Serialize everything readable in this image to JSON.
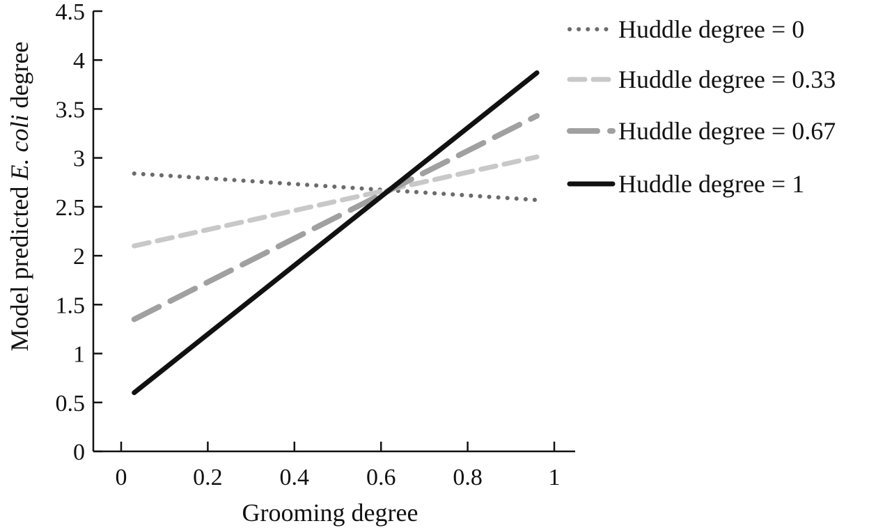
{
  "chart_data": {
    "type": "line",
    "title": "",
    "xlabel": "Grooming degree",
    "ylabel_parts": [
      "Model predicted ",
      "E. coli",
      " degree"
    ],
    "xlim": [
      -0.07,
      1.05
    ],
    "ylim": [
      0,
      4.5
    ],
    "x_ticks": [
      0,
      0.2,
      0.4,
      0.6,
      0.8,
      1
    ],
    "x_tick_labels": [
      "0",
      "0.2",
      "0.4",
      "0.6",
      "0.8",
      "1"
    ],
    "y_ticks": [
      0,
      0.5,
      1,
      1.5,
      2,
      2.5,
      3,
      3.5,
      4,
      4.5
    ],
    "y_tick_labels": [
      "0",
      "0.5",
      "1",
      "1.5",
      "2",
      "2.5",
      "3",
      "3.5",
      "4",
      "4.5"
    ],
    "grid": false,
    "legend_position": "top-right",
    "series": [
      {
        "name": "Huddle degree = 0",
        "x": [
          0.03,
          0.96
        ],
        "y": [
          2.84,
          2.57
        ],
        "color": "#6b6b6b",
        "style": "dotted"
      },
      {
        "name": "Huddle degree = 0.33",
        "x": [
          0.03,
          0.96
        ],
        "y": [
          2.1,
          3.01
        ],
        "color": "#c8c8c8",
        "style": "dashed-short"
      },
      {
        "name": "Huddle degree = 0.67",
        "x": [
          0.03,
          0.96
        ],
        "y": [
          1.35,
          3.43
        ],
        "color": "#a0a0a0",
        "style": "dashed-long"
      },
      {
        "name": "Huddle degree = 1",
        "x": [
          0.03,
          0.96
        ],
        "y": [
          0.6,
          3.87
        ],
        "color": "#111111",
        "style": "solid"
      }
    ]
  }
}
